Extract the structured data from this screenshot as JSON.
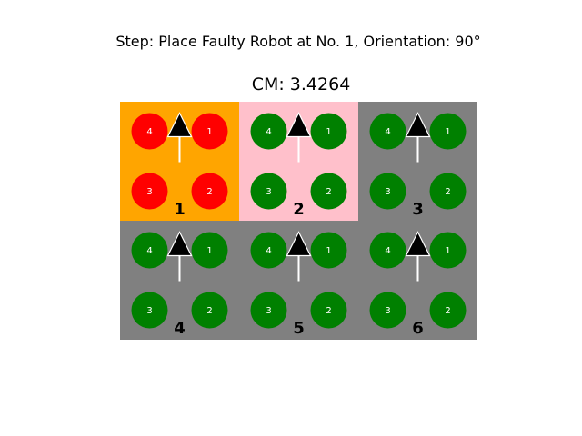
{
  "header": {
    "step_text": "Step: Place Faulty Robot at No. 1, Orientation: 90°",
    "cm_text": "CM: 3.4264"
  },
  "colors": {
    "faulty_cell": "#FFA500",
    "highlight_cell": "#FFC0CB",
    "default_cell": "#808080",
    "healthy_wheel": "#008000",
    "faulty_wheel": "#FF0000",
    "arrow_fill": "#000000",
    "arrow_stroke": "#FFFFFF",
    "wheel_text": "#FFFFFF",
    "cell_number_text": "#000000"
  },
  "grid": {
    "rows": 2,
    "cols": 3,
    "cells": [
      {
        "number": "1",
        "state": "faulty",
        "orientation_deg": 90,
        "wheels": [
          {
            "label": "4",
            "status": "faulty"
          },
          {
            "label": "1",
            "status": "faulty"
          },
          {
            "label": "3",
            "status": "faulty"
          },
          {
            "label": "2",
            "status": "faulty"
          }
        ]
      },
      {
        "number": "2",
        "state": "highlight",
        "orientation_deg": 90,
        "wheels": [
          {
            "label": "4",
            "status": "ok"
          },
          {
            "label": "1",
            "status": "ok"
          },
          {
            "label": "3",
            "status": "ok"
          },
          {
            "label": "2",
            "status": "ok"
          }
        ]
      },
      {
        "number": "3",
        "state": "default",
        "orientation_deg": 90,
        "wheels": [
          {
            "label": "4",
            "status": "ok"
          },
          {
            "label": "1",
            "status": "ok"
          },
          {
            "label": "3",
            "status": "ok"
          },
          {
            "label": "2",
            "status": "ok"
          }
        ]
      },
      {
        "number": "4",
        "state": "default",
        "orientation_deg": 90,
        "wheels": [
          {
            "label": "4",
            "status": "ok"
          },
          {
            "label": "1",
            "status": "ok"
          },
          {
            "label": "3",
            "status": "ok"
          },
          {
            "label": "2",
            "status": "ok"
          }
        ]
      },
      {
        "number": "5",
        "state": "default",
        "orientation_deg": 90,
        "wheels": [
          {
            "label": "4",
            "status": "ok"
          },
          {
            "label": "1",
            "status": "ok"
          },
          {
            "label": "3",
            "status": "ok"
          },
          {
            "label": "2",
            "status": "ok"
          }
        ]
      },
      {
        "number": "6",
        "state": "default",
        "orientation_deg": 90,
        "wheels": [
          {
            "label": "4",
            "status": "ok"
          },
          {
            "label": "1",
            "status": "ok"
          },
          {
            "label": "3",
            "status": "ok"
          },
          {
            "label": "2",
            "status": "ok"
          }
        ]
      }
    ]
  }
}
